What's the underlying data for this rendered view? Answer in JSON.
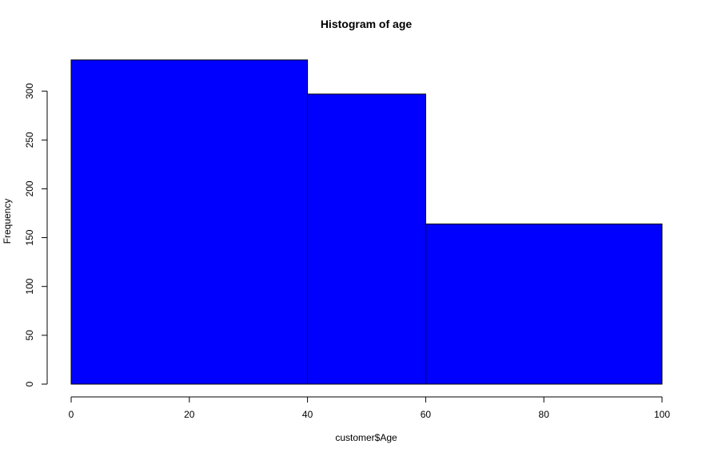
{
  "chart_data": {
    "type": "bar",
    "title": "Histogram of age",
    "xlabel": "customer$Age",
    "ylabel": "Frequency",
    "bins": [
      {
        "from": 0,
        "to": 40,
        "count": 332
      },
      {
        "from": 40,
        "to": 60,
        "count": 297
      },
      {
        "from": 60,
        "to": 100,
        "count": 164
      }
    ],
    "xlim": [
      0,
      100
    ],
    "ylim": [
      0,
      332
    ],
    "x_ticks": [
      0,
      20,
      40,
      60,
      80,
      100
    ],
    "y_ticks": [
      0,
      50,
      100,
      150,
      200,
      250,
      300
    ],
    "grid": false,
    "bar_color": "#0000FF"
  }
}
